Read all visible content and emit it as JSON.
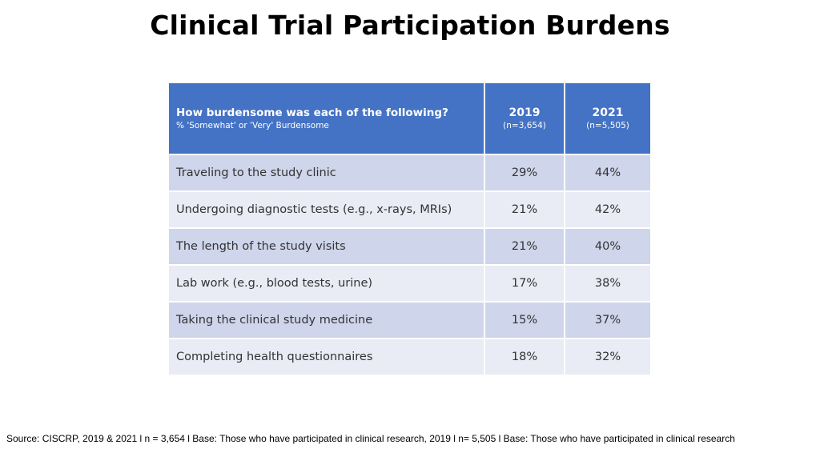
{
  "title": "Clinical Trial Participation Burdens",
  "table": {
    "header": {
      "question": "How burdensome was each of the following?",
      "subtitle": "% 'Somewhat' or 'Very' Burdensome",
      "col2019": {
        "year": "2019",
        "n": "(n=3,654)"
      },
      "col2021": {
        "year": "2021",
        "n": "(n=5,505)"
      }
    },
    "rows": [
      {
        "label": "Traveling to the study clinic",
        "v2019": "29%",
        "v2021": "44%"
      },
      {
        "label": "Undergoing diagnostic tests (e.g., x-rays, MRIs)",
        "v2019": "21%",
        "v2021": "42%"
      },
      {
        "label": "The length of the study visits",
        "v2019": "21%",
        "v2021": "40%"
      },
      {
        "label": "Lab work (e.g., blood tests, urine)",
        "v2019": "17%",
        "v2021": "38%"
      },
      {
        "label": "Taking the clinical study medicine",
        "v2019": "15%",
        "v2021": "37%"
      },
      {
        "label": "Completing health questionnaires",
        "v2019": "18%",
        "v2021": "32%"
      }
    ]
  },
  "source": "Source: CISCRP, 2019 & 2021 l n = 3,654 l Base: Those who have participated in clinical research, 2019 l n= 5,505 l Base: Those who have participated in clinical research",
  "colors": {
    "header_bg": "#4472C4",
    "row_dark": "#CFD5EA",
    "row_light": "#E9EBF5"
  }
}
